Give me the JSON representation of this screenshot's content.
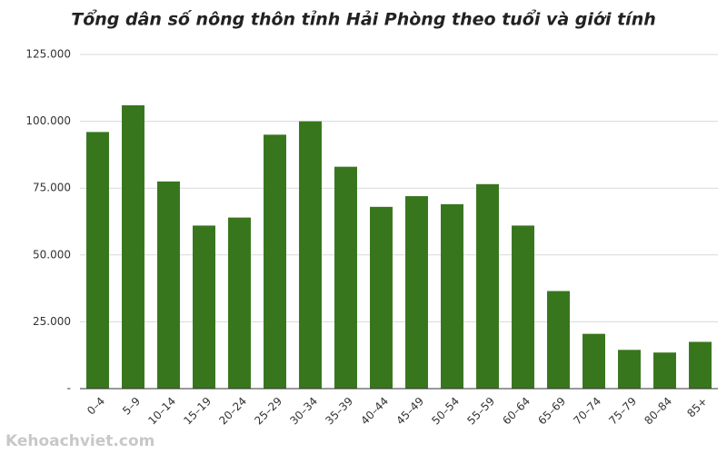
{
  "chart_data": {
    "type": "bar",
    "title": "Tổng dân số nông thôn tỉnh Hải Phòng theo tuổi và giới tính",
    "watermark": "Kehoachviet.com",
    "categories": [
      "0–4",
      "5–9",
      "10–14",
      "15–19",
      "20–24",
      "25–29",
      "30–34",
      "35–39",
      "40–44",
      "45–49",
      "50–54",
      "55–59",
      "60–64",
      "65–69",
      "70–74",
      "75–79",
      "80–84",
      "85+"
    ],
    "values": [
      96000,
      106000,
      77500,
      61000,
      64000,
      95000,
      100000,
      83000,
      68000,
      72000,
      69000,
      76500,
      61000,
      36500,
      20500,
      14500,
      13500,
      17500
    ],
    "color": "#38761d",
    "ylim": [
      0,
      125000
    ],
    "yticks": [
      {
        "value": 0,
        "label": "-"
      },
      {
        "value": 25000,
        "label": "25.000"
      },
      {
        "value": 50000,
        "label": "50.000"
      },
      {
        "value": 75000,
        "label": "75.000"
      },
      {
        "value": 100000,
        "label": "100.000"
      },
      {
        "value": 125000,
        "label": "125.000"
      }
    ],
    "grid": true
  }
}
